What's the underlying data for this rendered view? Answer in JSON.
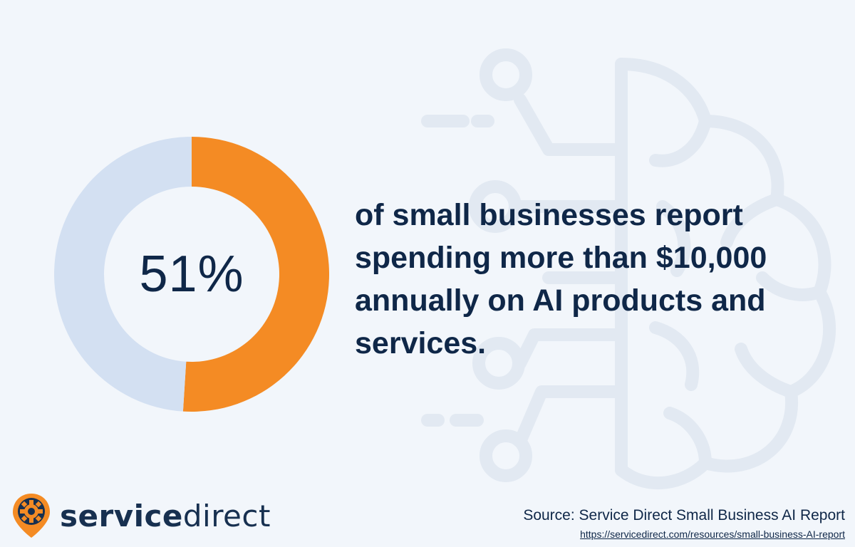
{
  "chart_data": {
    "type": "pie",
    "variant": "donut",
    "value_label": "51%",
    "slices": [
      {
        "value": 51,
        "color": "#f48b24"
      },
      {
        "value": 49,
        "color": "#d3e0f2"
      }
    ]
  },
  "headline": "of small businesses report spending more than $10,000 annually on AI products and services.",
  "logo": {
    "word_bold": "service",
    "word_regular": "direct",
    "icon": "gear-pin-icon",
    "accent": "#f48b24"
  },
  "source": {
    "label": "Source: Service Direct Small Business AI Report",
    "url": "https://servicedirect.com/resources/small-business-AI-report"
  },
  "colors": {
    "background": "#f2f6fb",
    "text": "#0f2748",
    "accent": "#f48b24",
    "track": "#d3e0f2",
    "decor": "#e2e9f2"
  }
}
